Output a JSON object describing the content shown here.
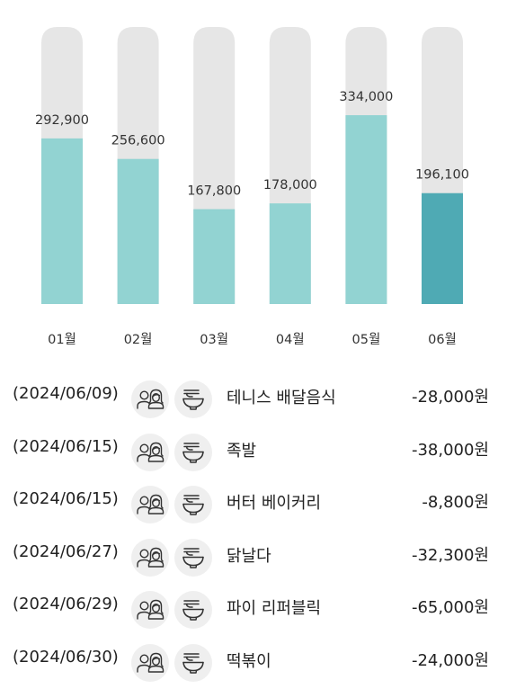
{
  "chart_data": {
    "type": "bar",
    "categories": [
      "01월",
      "02월",
      "03월",
      "04월",
      "05월",
      "06월"
    ],
    "values": [
      292900,
      256600,
      167800,
      178000,
      334000,
      196100
    ],
    "value_labels": [
      "292,900",
      "256,600",
      "167,800",
      "178,000",
      "334,000",
      "196,100"
    ],
    "highlight_index": 5,
    "ylim": [
      0,
      490000
    ],
    "grid": false,
    "legend": "none",
    "colors": {
      "bar": "#92d3d2",
      "highlight": "#4faab4",
      "track": "#e6e6e6",
      "label": "#333333"
    }
  },
  "icons": {
    "people": "couple-icon",
    "food": "noodle-bowl-icon"
  },
  "transactions": [
    {
      "date": "(2024/06/09)",
      "store": "테니스 배달음식",
      "amount": "-28,000원"
    },
    {
      "date": "(2024/06/15)",
      "store": "족발",
      "amount": "-38,000원"
    },
    {
      "date": "(2024/06/15)",
      "store": "버터 베이커리",
      "amount": "-8,800원"
    },
    {
      "date": "(2024/06/27)",
      "store": "닭날다",
      "amount": "-32,300원"
    },
    {
      "date": "(2024/06/29)",
      "store": "파이 리퍼블릭",
      "amount": "-65,000원"
    },
    {
      "date": "(2024/06/30)",
      "store": "떡볶이",
      "amount": "-24,000원"
    }
  ]
}
